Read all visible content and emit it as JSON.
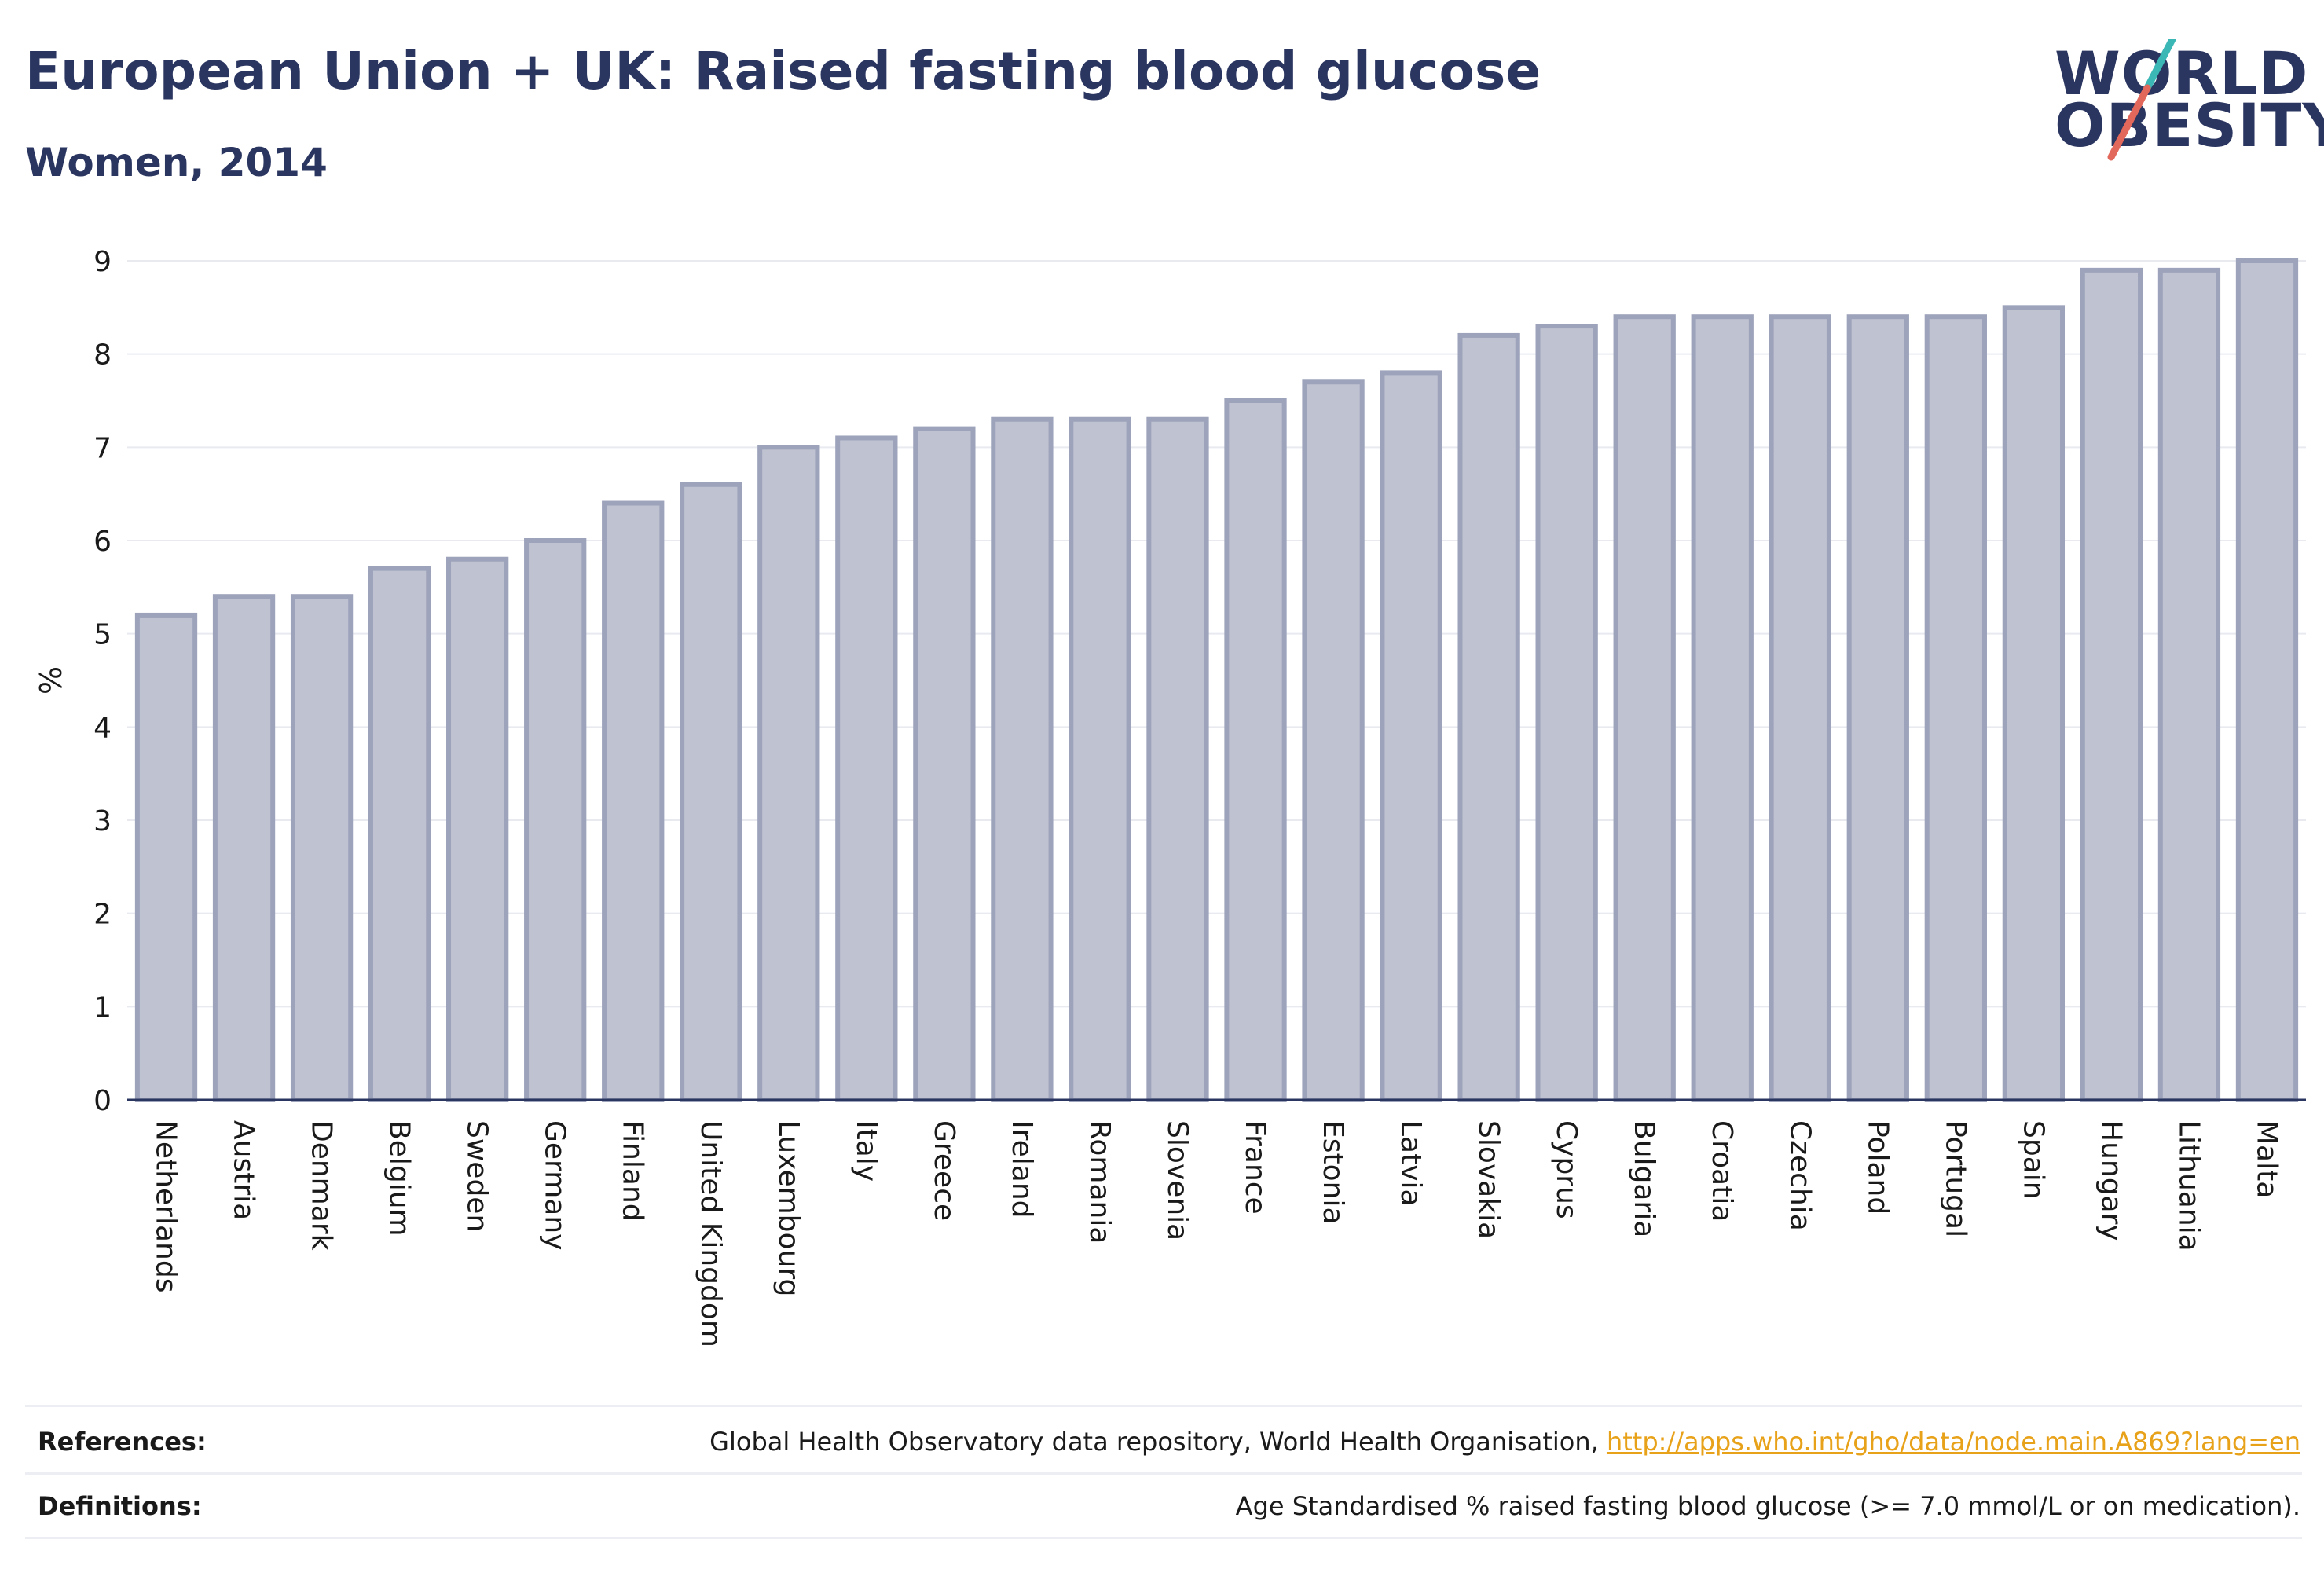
{
  "header": {
    "title": "European Union + UK: Raised fasting blood glucose",
    "subtitle": "Women, 2014"
  },
  "logo": {
    "line1": "WORLD",
    "line2": "OBESITY",
    "slash_colors": [
      "#3bb7b6",
      "#e2685c"
    ]
  },
  "colors": {
    "bar_fill": "#bfc2d0",
    "bar_stroke": "#9da3bb",
    "axis": "#2a3560",
    "grid": "#e8eaf0",
    "link": "#e8a21a"
  },
  "chart_data": {
    "type": "bar",
    "title": "European Union + UK: Raised fasting blood glucose",
    "subtitle": "Women, 2014",
    "xlabel": "",
    "ylabel": "%",
    "ylim": [
      0,
      9
    ],
    "yticks": [
      0,
      1,
      2,
      3,
      4,
      5,
      6,
      7,
      8,
      9
    ],
    "grid": true,
    "categories": [
      "Netherlands",
      "Austria",
      "Denmark",
      "Belgium",
      "Sweden",
      "Germany",
      "Finland",
      "United Kingdom",
      "Luxembourg",
      "Italy",
      "Greece",
      "Ireland",
      "Romania",
      "Slovenia",
      "France",
      "Estonia",
      "Latvia",
      "Slovakia",
      "Cyprus",
      "Bulgaria",
      "Croatia",
      "Czechia",
      "Poland",
      "Portugal",
      "Spain",
      "Hungary",
      "Lithuania",
      "Malta"
    ],
    "values": [
      5.2,
      5.4,
      5.4,
      5.7,
      5.8,
      6.0,
      6.4,
      6.6,
      7.0,
      7.1,
      7.2,
      7.3,
      7.3,
      7.3,
      7.5,
      7.7,
      7.8,
      8.2,
      8.3,
      8.4,
      8.4,
      8.4,
      8.4,
      8.4,
      8.5,
      8.9,
      8.9,
      9.0
    ]
  },
  "footer": {
    "references_label": "References:",
    "references_text": "Global Health Observatory data repository, World Health Organisation, ",
    "references_link": "http://apps.who.int/gho/data/node.main.A869?lang=en",
    "definitions_label": "Definitions:",
    "definitions_text": "Age Standardised % raised fasting blood glucose (>= 7.0 mmol/L or on medication)."
  }
}
